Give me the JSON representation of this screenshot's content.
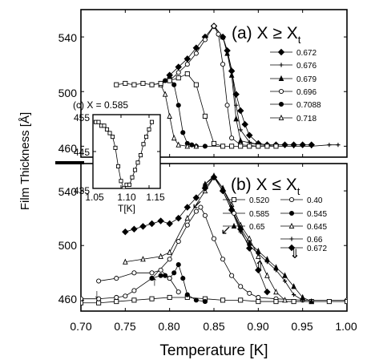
{
  "chart_data": [
    {
      "id": "a",
      "type": "scatter",
      "title": "(a) X ≥ X",
      "title_sub": "t",
      "xlabel": "Temperature [K]",
      "ylabel": "Film Thickness [Å]",
      "xlim": [
        0.7,
        1.0
      ],
      "ylim": [
        452,
        560
      ],
      "yticks": [
        460,
        500,
        540
      ],
      "xticks": [
        0.7,
        0.75,
        0.8,
        0.85,
        0.9,
        0.95,
        1.0
      ],
      "xticklabels": [
        "0.70",
        "0.75",
        "0.80",
        "0.85",
        "0.90",
        "0.95",
        "1.00"
      ],
      "legend_position": "right",
      "series": [
        {
          "name": "0.672",
          "marker": "diamond-filled",
          "x": [
            0.8,
            0.81,
            0.82,
            0.83,
            0.84,
            0.85,
            0.86,
            0.865,
            0.87,
            0.875,
            0.88,
            0.885,
            0.89,
            0.9,
            0.91,
            0.92,
            0.93,
            0.94,
            0.95,
            0.96
          ],
          "y": [
            512,
            518,
            524,
            532,
            540,
            548,
            540,
            530,
            515,
            498,
            486,
            476,
            468,
            462,
            461,
            461,
            461,
            461,
            461,
            461
          ]
        },
        {
          "name": "0.676",
          "marker": "plus",
          "x": [
            0.85,
            0.86,
            0.865,
            0.87,
            0.875,
            0.88,
            0.89,
            0.9,
            0.92,
            0.94,
            0.96,
            0.98,
            0.99
          ],
          "y": [
            548,
            540,
            530,
            516,
            490,
            472,
            463,
            461,
            460,
            460,
            460,
            461,
            461
          ]
        },
        {
          "name": "0.679",
          "marker": "triangle-filled",
          "x": [
            0.85,
            0.86,
            0.865,
            0.87,
            0.875,
            0.88,
            0.9
          ],
          "y": [
            548,
            540,
            528,
            512,
            480,
            464,
            461
          ]
        },
        {
          "name": "0.696",
          "marker": "circle-open",
          "x": [
            0.78,
            0.79,
            0.8,
            0.81,
            0.82,
            0.83,
            0.84,
            0.85,
            0.855,
            0.86,
            0.865,
            0.87,
            0.88,
            0.9
          ],
          "y": [
            505,
            506,
            508,
            514,
            520,
            528,
            538,
            548,
            542,
            520,
            490,
            466,
            461,
            460
          ]
        },
        {
          "name": "0.7088",
          "marker": "circle-filled",
          "x": [
            0.795,
            0.8,
            0.805,
            0.81,
            0.815,
            0.82,
            0.825,
            0.83,
            0.84,
            0.86
          ],
          "y": [
            508,
            510,
            505,
            490,
            470,
            462,
            461,
            460,
            460,
            460
          ]
        },
        {
          "name": "0.718",
          "marker": "triangle-open",
          "x": [
            0.79,
            0.795,
            0.8,
            0.805,
            0.81,
            0.82,
            0.83
          ],
          "y": [
            505,
            498,
            482,
            466,
            461,
            460,
            460
          ]
        },
        {
          "name": "",
          "marker": "square-open",
          "x": [
            0.74,
            0.75,
            0.76,
            0.77,
            0.78,
            0.79,
            0.8,
            0.81,
            0.82,
            0.83,
            0.84,
            0.85,
            0.86,
            0.87,
            0.88,
            0.89,
            0.9,
            0.91,
            0.92
          ],
          "y": [
            505,
            506,
            505,
            506,
            505,
            506,
            508,
            510,
            513,
            505,
            482,
            462,
            460,
            460,
            460,
            460,
            460,
            460,
            460
          ]
        }
      ]
    },
    {
      "id": "b",
      "type": "scatter",
      "title": "(b) X ≤ X",
      "title_sub": "t",
      "xlabel": "Temperature [K]",
      "ylabel": "Film Thickness [Å]",
      "xlim": [
        0.7,
        1.0
      ],
      "ylim": [
        452,
        560
      ],
      "yticks": [
        460,
        500,
        540
      ],
      "xticks": [
        0.7,
        0.75,
        0.8,
        0.85,
        0.9,
        0.95,
        1.0
      ],
      "xticklabels": [
        "0.70",
        "0.75",
        "0.80",
        "0.85",
        "0.90",
        "0.95",
        "1.00"
      ],
      "legend_position": "right",
      "series": [
        {
          "name": "0.40",
          "marker": "circle-open",
          "x": [
            0.7,
            0.72,
            0.74,
            0.75,
            0.76,
            0.78,
            0.8,
            0.81,
            0.82,
            0.83,
            0.835,
            0.84,
            0.85,
            0.86,
            0.87,
            0.88,
            0.89,
            0.9,
            0.92,
            0.95,
            1.0
          ],
          "y": [
            461,
            461,
            462,
            463,
            467,
            476,
            490,
            503,
            515,
            525,
            528,
            522,
            505,
            490,
            478,
            470,
            465,
            462,
            461,
            460,
            460
          ]
        },
        {
          "name": "0.520",
          "marker": "square-open",
          "x": [
            0.7,
            0.72,
            0.74,
            0.76,
            0.78,
            0.8,
            0.82,
            0.84,
            0.86,
            0.88,
            0.9,
            0.92,
            0.94,
            0.96,
            0.98,
            1.0
          ],
          "y": [
            458,
            458,
            459,
            460,
            461,
            462,
            462,
            461,
            460,
            460,
            459,
            459,
            459,
            459,
            459,
            459
          ]
        },
        {
          "name": "0.545",
          "marker": "circle-filled",
          "x": [
            0.78,
            0.79,
            0.795,
            0.8,
            0.805,
            0.81,
            0.815,
            0.82,
            0.83,
            0.84
          ],
          "y": [
            476,
            478,
            478,
            476,
            480,
            486,
            476,
            464,
            460,
            459
          ]
        },
        {
          "name": "0.585",
          "marker": "circle-open",
          "x": [
            0.72,
            0.74,
            0.76,
            0.78,
            0.79,
            0.8,
            0.81
          ],
          "y": [
            474,
            476,
            480,
            480,
            482,
            476,
            466
          ]
        },
        {
          "name": "0.645",
          "marker": "triangle-open",
          "x": [
            0.75,
            0.77,
            0.79,
            0.8,
            0.82,
            0.84,
            0.85,
            0.86,
            0.87,
            0.88,
            0.89,
            0.9,
            0.91,
            0.92,
            0.93
          ],
          "y": [
            488,
            490,
            492,
            495,
            520,
            540,
            550,
            542,
            530,
            515,
            505,
            492,
            478,
            466,
            460
          ]
        },
        {
          "name": "0.65",
          "marker": "triangle-filled",
          "x": [
            0.84,
            0.85,
            0.86,
            0.87,
            0.88,
            0.89,
            0.9,
            0.91,
            0.92,
            0.93,
            0.94,
            0.95,
            0.96
          ],
          "y": [
            545,
            551,
            542,
            528,
            513,
            502,
            496,
            490,
            484,
            478,
            470,
            462,
            459
          ]
        },
        {
          "name": "0.66",
          "marker": "plus",
          "x": [
            0.84,
            0.85,
            0.86,
            0.87,
            0.88,
            0.89,
            0.9,
            0.91,
            0.92,
            0.93,
            0.94,
            0.95
          ],
          "y": [
            545,
            550,
            540,
            526,
            510,
            500,
            494,
            488,
            482,
            474,
            464,
            460
          ]
        },
        {
          "name": "0.672",
          "marker": "diamond-filled",
          "x": [
            0.75,
            0.76,
            0.77,
            0.78,
            0.79,
            0.8,
            0.81,
            0.82,
            0.83,
            0.84,
            0.85,
            0.86,
            0.87,
            0.88,
            0.89,
            0.9,
            0.91
          ],
          "y": [
            510,
            512,
            514,
            516,
            518,
            516,
            520,
            528,
            535,
            542,
            550,
            540,
            526,
            512,
            498,
            482,
            466
          ]
        }
      ],
      "annotations": [
        "↓",
        "↑",
        "↙",
        "↙",
        "⇑",
        "⇓"
      ]
    },
    {
      "id": "c",
      "type": "line",
      "title": "(c) X  = 0.585",
      "xlabel": "T[K]",
      "ylabel": "",
      "xlim": [
        1.05,
        1.17
      ],
      "ylim": [
        435,
        455
      ],
      "yticks": [
        435,
        445,
        455
      ],
      "xticks": [
        1.05,
        1.1,
        1.15
      ],
      "xticklabels": [
        "1.05",
        "1.10",
        "1.15"
      ],
      "series": [
        {
          "name": "",
          "marker": "square-open",
          "x": [
            1.055,
            1.06,
            1.065,
            1.07,
            1.075,
            1.08,
            1.085,
            1.09,
            1.095,
            1.1,
            1.105,
            1.11,
            1.115,
            1.12,
            1.125,
            1.13,
            1.135,
            1.14,
            1.145,
            1.15,
            1.155
          ],
          "y": [
            453,
            453,
            452,
            452,
            451,
            450,
            449,
            446,
            441,
            437,
            435,
            436,
            436,
            438,
            440,
            442,
            444,
            447,
            449,
            451,
            453
          ]
        }
      ]
    }
  ]
}
